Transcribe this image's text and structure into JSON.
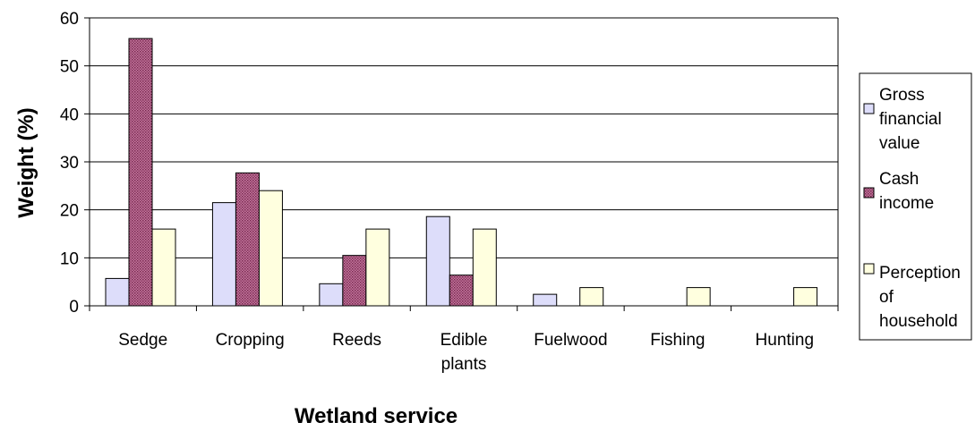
{
  "chart_data": {
    "type": "bar",
    "title": "",
    "xlabel": "Wetland service",
    "ylabel": "Weight (%)",
    "ylim": [
      0,
      60
    ],
    "yticks": [
      "0",
      "10",
      "20",
      "30",
      "40",
      "50",
      "60"
    ],
    "grid": true,
    "legend_position": "right",
    "categories": [
      [
        "Sedge"
      ],
      [
        "Cropping"
      ],
      [
        "Reeds"
      ],
      [
        "Edible",
        "plants"
      ],
      [
        "Fuelwood"
      ],
      [
        "Fishing"
      ],
      [
        "Hunting"
      ]
    ],
    "series": [
      {
        "name": "Gross financial value",
        "name_lines": [
          "Gross",
          "financial",
          "value"
        ],
        "color": "#ddddfa",
        "pattern": "solid",
        "values": [
          5.7,
          21.5,
          4.6,
          18.6,
          2.4,
          0,
          0
        ]
      },
      {
        "name": "Cash income",
        "name_lines": [
          "Cash",
          "income"
        ],
        "color": "#9e4873",
        "pattern": "dotted",
        "values": [
          55.7,
          27.7,
          10.5,
          6.4,
          0,
          0,
          0
        ]
      },
      {
        "name": "Perception of household",
        "name_lines": [
          "Perception",
          "of",
          "household"
        ],
        "color": "#ffffdf",
        "pattern": "solid",
        "values": [
          16,
          24,
          16,
          16,
          3.8,
          3.8,
          3.8
        ]
      }
    ]
  }
}
